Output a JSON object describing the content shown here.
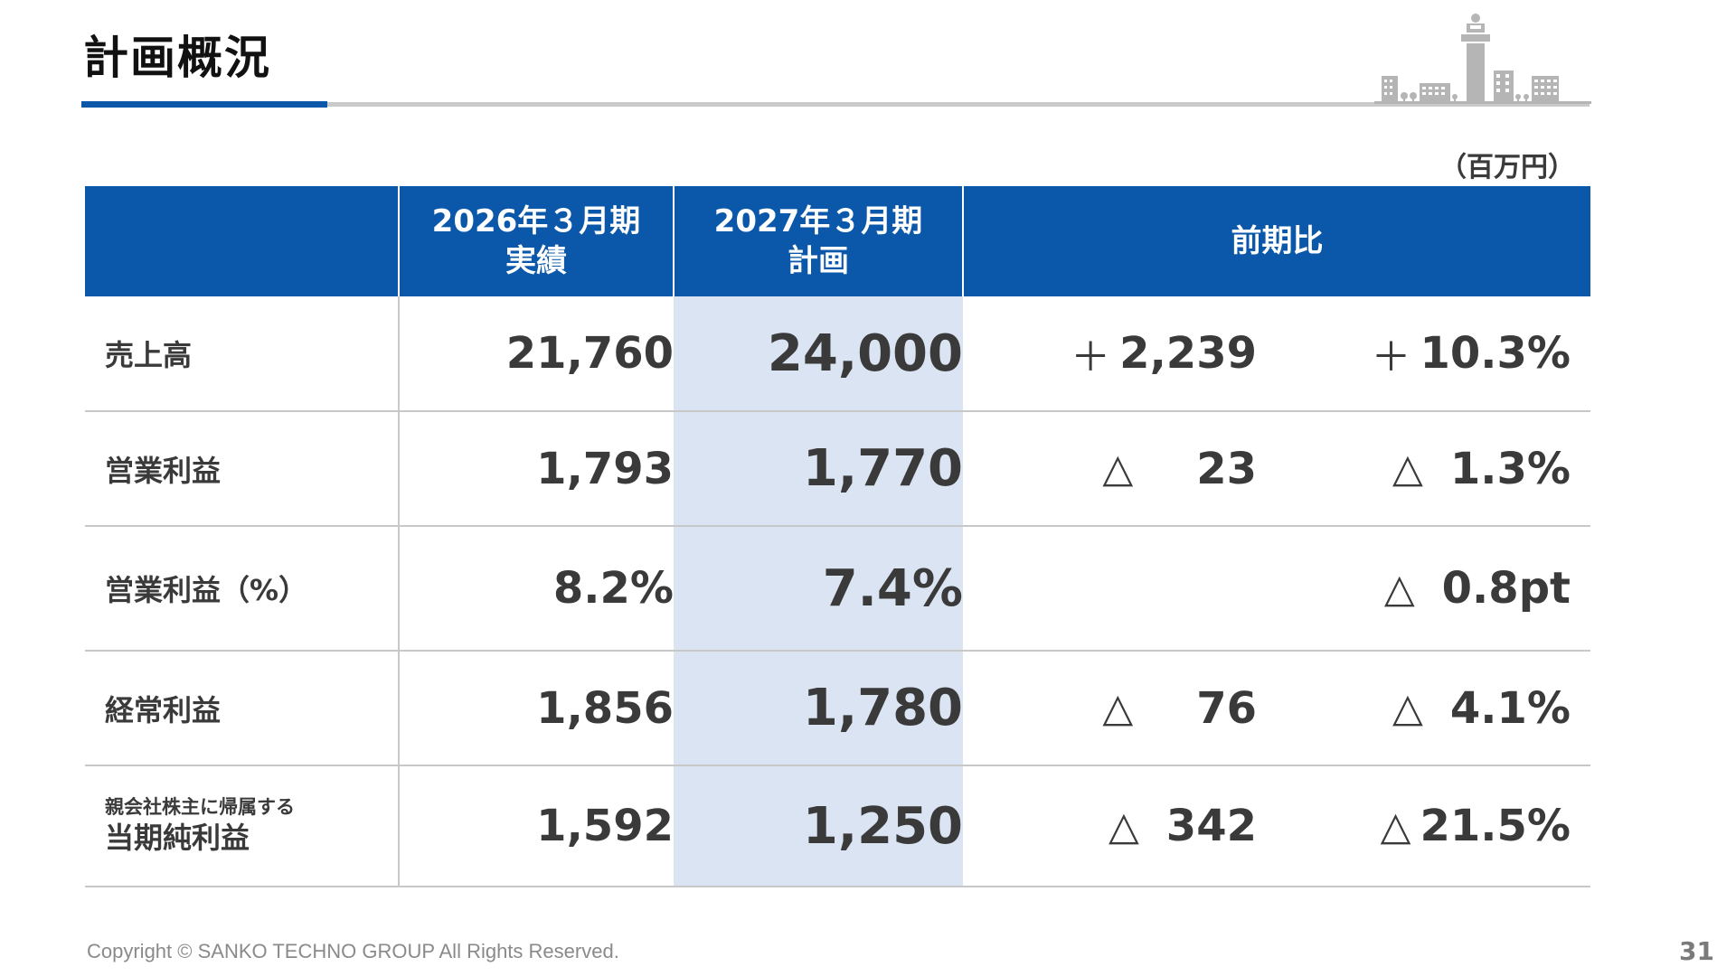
{
  "page": {
    "title": "計画概況",
    "unit": "（百万円）",
    "copyright": "Copyright © SANKO TECHNO GROUP All Rights Reserved.",
    "page_number": "31"
  },
  "table": {
    "headers": {
      "col1": "",
      "col2_line1": "2026年３月期",
      "col2_line2": "実績",
      "col3_line1": "2027年３月期",
      "col3_line2": "計画",
      "col4": "前期比"
    },
    "rows": [
      {
        "label": "売上高",
        "actual": "21,760",
        "plan": "24,000",
        "diff_sign": "＋",
        "diff": "2,239",
        "rate_sign": "＋",
        "rate": "10.3%"
      },
      {
        "label": "営業利益",
        "actual": "1,793",
        "plan": "1,770",
        "diff_sign": "△",
        "diff": "23",
        "rate_sign": "△",
        "rate": "1.3%"
      },
      {
        "label": "営業利益（%）",
        "actual": "8.2%",
        "plan": "7.4%",
        "diff_sign": "",
        "diff": "",
        "rate_sign": "△",
        "rate": "0.8pt"
      },
      {
        "label": "経常利益",
        "actual": "1,856",
        "plan": "1,780",
        "diff_sign": "△",
        "diff": "76",
        "rate_sign": "△",
        "rate": "4.1%"
      },
      {
        "label_small": "親会社株主に帰属する",
        "label": "当期純利益",
        "actual": "1,592",
        "plan": "1,250",
        "diff_sign": "△",
        "diff": "342",
        "rate_sign": "△",
        "rate": "21.5%"
      }
    ]
  },
  "colors": {
    "header_blue": "#0b58aa",
    "plan_column_bg": "#dbe4f3",
    "rule_gray": "#c9c9c9"
  },
  "icons": {
    "skyline": "city-skyline-illustration"
  }
}
